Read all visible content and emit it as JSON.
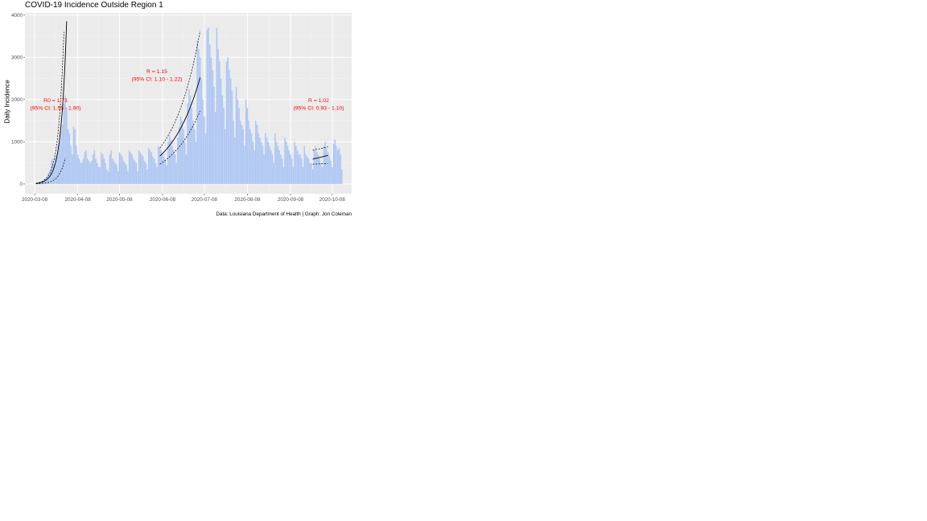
{
  "chart_data": {
    "type": "bar",
    "title": "COVID-19 Incidence Outside Region 1",
    "xlabel": "",
    "ylabel": "Daily Incidence",
    "caption": "Data: Louisiana Department of Health | Graph: Jon Coleman",
    "xlim": [
      "2020-03-01",
      "2020-10-22"
    ],
    "ylim": [
      -230,
      4050
    ],
    "yticks": [
      0,
      1000,
      2000,
      3000,
      4000
    ],
    "xticks": [
      "2020-03-08",
      "2020-04-08",
      "2020-05-08",
      "2020-06-08",
      "2020-07-08",
      "2020-08-08",
      "2020-09-08",
      "2020-10-08"
    ],
    "grid": true,
    "legend": "none",
    "series_color": "#aec7f4",
    "annotation_color": "#ff0000",
    "x_start": "2020-03-09",
    "values": [
      5,
      12,
      20,
      40,
      60,
      80,
      120,
      150,
      180,
      260,
      330,
      550,
      600,
      480,
      650,
      720,
      900,
      1000,
      1250,
      1400,
      1900,
      2100,
      1800,
      1300,
      1200,
      900,
      700,
      1350,
      1300,
      900,
      700,
      600,
      500,
      520,
      600,
      750,
      800,
      600,
      550,
      500,
      550,
      700,
      800,
      600,
      500,
      400,
      400,
      750,
      700,
      600,
      500,
      350,
      300,
      700,
      800,
      600,
      550,
      500,
      450,
      300,
      750,
      700,
      650,
      550,
      500,
      450,
      300,
      800,
      750,
      700,
      600,
      550,
      500,
      300,
      800,
      750,
      700,
      650,
      550,
      500,
      350,
      850,
      800,
      750,
      650,
      600,
      500,
      400,
      900,
      850,
      800,
      700,
      650,
      550,
      450,
      1000,
      1150,
      1050,
      900,
      800,
      700,
      500,
      1100,
      1350,
      1600,
      1500,
      1300,
      1000,
      700,
      1900,
      2250,
      2100,
      1800,
      1500,
      1300,
      1000,
      3400,
      3200,
      3000,
      2500,
      2000,
      1600,
      1200,
      3650,
      3700,
      3300,
      3000,
      2700,
      2300,
      1700,
      3700,
      3200,
      2900,
      2500,
      2100,
      1800,
      1300,
      2900,
      3000,
      2700,
      2500,
      2200,
      1500,
      1100,
      2300,
      2000,
      1800,
      1500,
      1400,
      1300,
      900,
      2000,
      1800,
      1500,
      1300,
      1200,
      1000,
      800,
      1500,
      1400,
      1200,
      1100,
      1000,
      900,
      700,
      1200,
      1100,
      1000,
      900,
      800,
      700,
      500,
      1200,
      1000,
      900,
      800,
      700,
      600,
      400,
      1100,
      1000,
      900,
      800,
      700,
      600,
      400,
      1000,
      900,
      800,
      700,
      700,
      600,
      400,
      900,
      700,
      650,
      600,
      500,
      500,
      350,
      800,
      900,
      750,
      700,
      600,
      500,
      400,
      900,
      1000,
      850,
      750,
      650,
      550,
      400,
      950,
      1050,
      900,
      800,
      850,
      700,
      350
    ],
    "fits": [
      {
        "label": "R0 = 1.73",
        "ci": "(95% CI: 1.55 - 1.90)",
        "x_start": "2020-03-09",
        "x_end": "2020-03-31",
        "fit": [
          15,
          3850
        ],
        "lower": [
          5,
          620
        ],
        "upper": [
          20,
          3600
        ],
        "lower_end": "2020-03-30",
        "upper_end": "2020-03-29"
      },
      {
        "label": "R = 1.15",
        "ci": "(95% CI: 1.10 - 1.22)",
        "x_start": "2020-06-06",
        "x_end": "2020-07-05",
        "fit": [
          660,
          2520
        ],
        "lower": [
          470,
          1730
        ],
        "upper": [
          850,
          3620
        ]
      },
      {
        "label": "R = 1.02",
        "ci": "(95% CI: 0.93 - 1.10)",
        "x_start": "2020-09-24",
        "x_end": "2020-10-05",
        "fit": [
          590,
          680
        ],
        "lower": [
          470,
          490
        ],
        "upper": [
          800,
          880
        ]
      }
    ]
  }
}
